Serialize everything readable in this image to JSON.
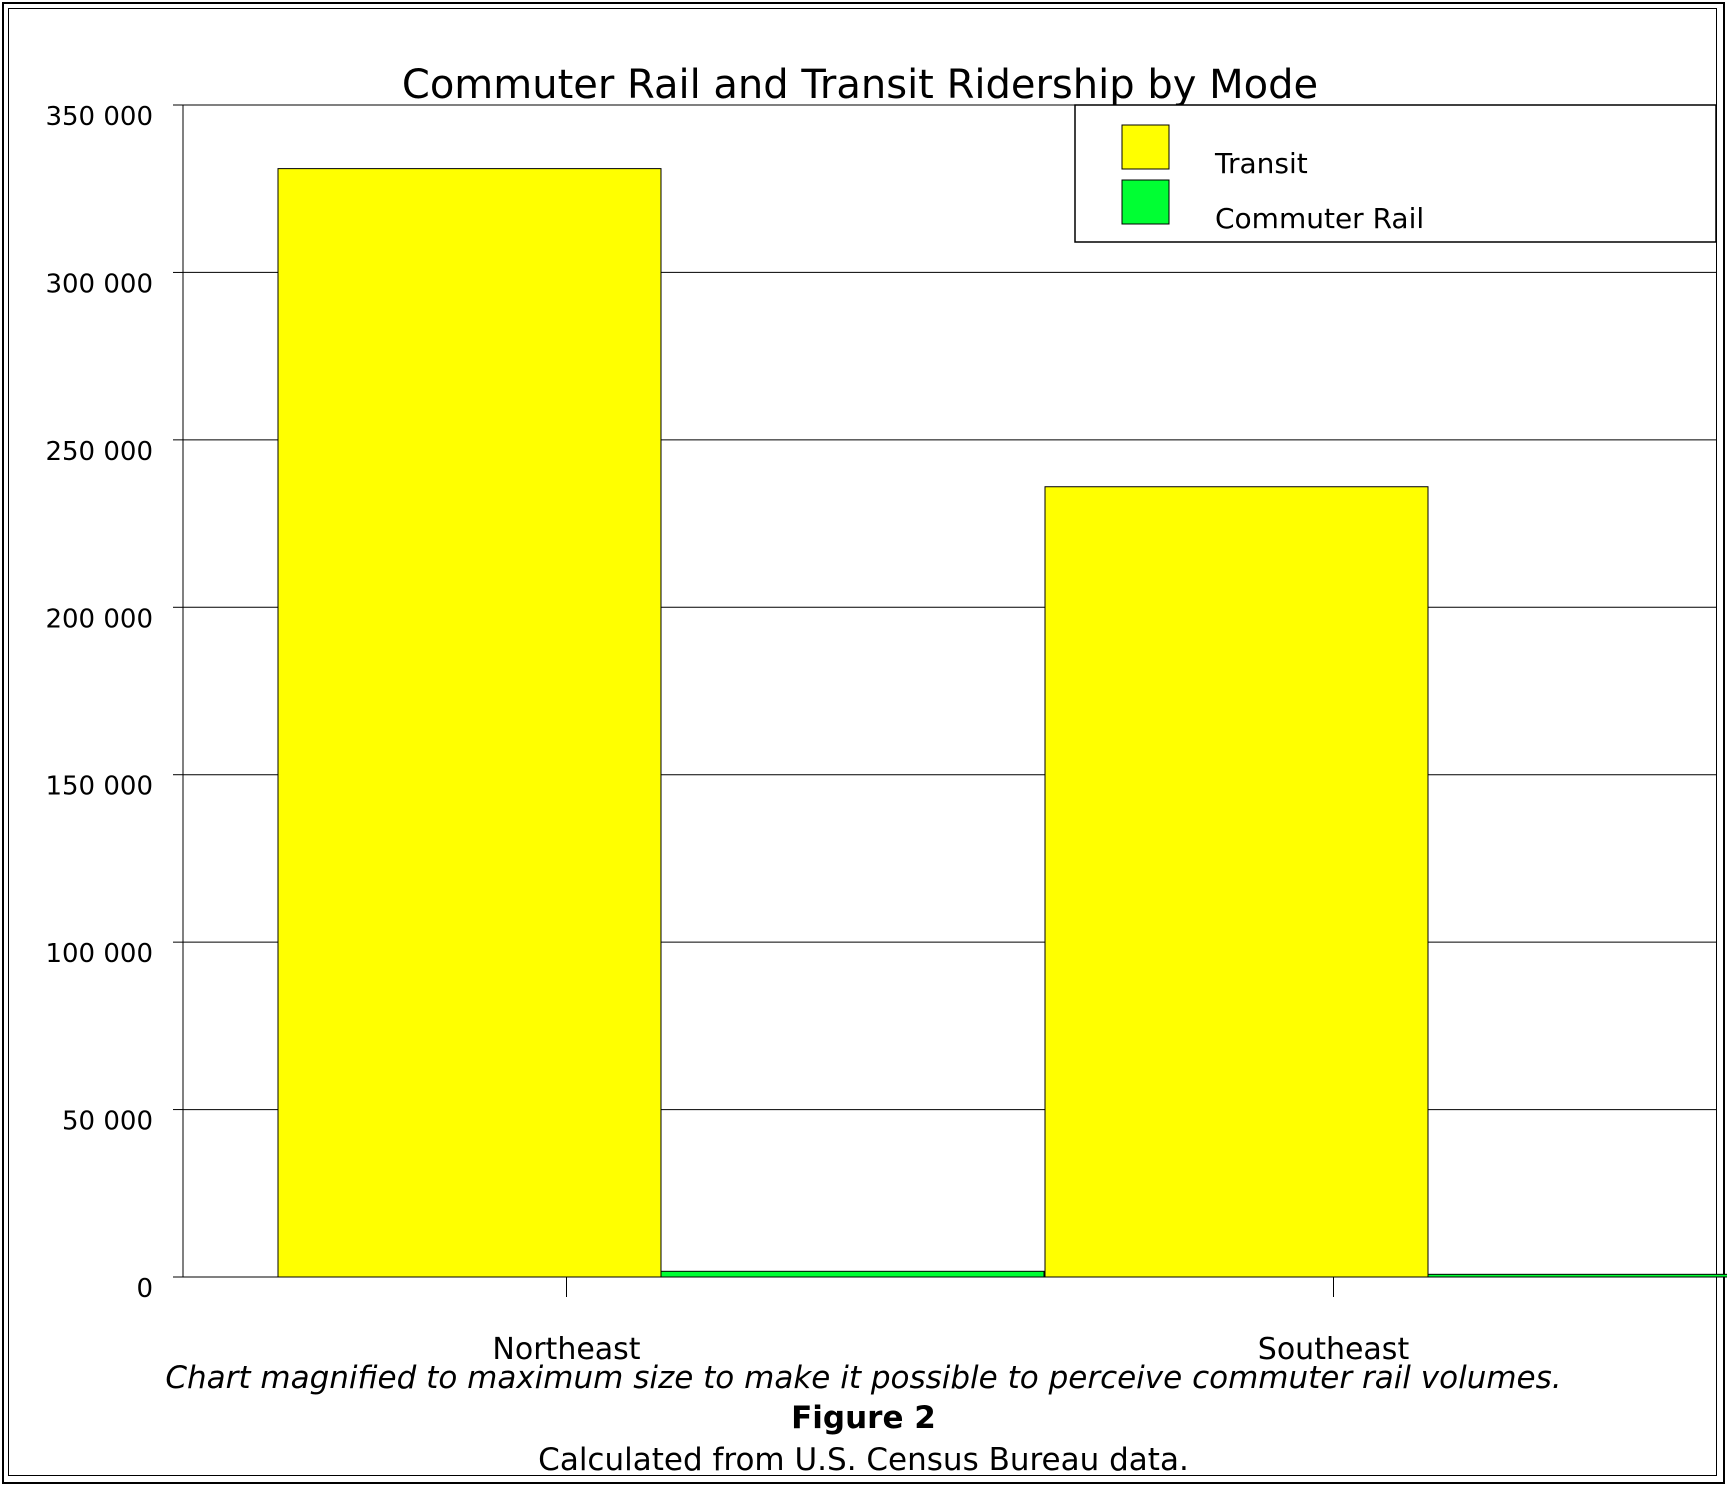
{
  "chart_data": {
    "type": "bar",
    "title": "Commuter Rail and Transit Ridership by Mode",
    "categories": [
      "Northeast",
      "Southeast"
    ],
    "series": [
      {
        "name": "Transit",
        "color": "#ffff00",
        "values": [
          331000,
          236000
        ]
      },
      {
        "name": "Commuter Rail",
        "color": "#00ff33",
        "values": [
          1700,
          800
        ]
      }
    ],
    "yticks": [
      0,
      50000,
      100000,
      150000,
      200000,
      250000,
      300000,
      350000
    ],
    "ytick_labels": [
      "0",
      "50 000",
      "100 000",
      "150 000",
      "200 000",
      "250 000",
      "300 000",
      "350 000"
    ],
    "ylim": [
      0,
      350000
    ],
    "grid": true,
    "legend_position": "top-right"
  },
  "captions": {
    "note": "Chart magnified to maximum size to make it possible to perceive commuter rail volumes.",
    "figure": "Figure 2",
    "source": "Calculated from U.S. Census Bureau data."
  }
}
